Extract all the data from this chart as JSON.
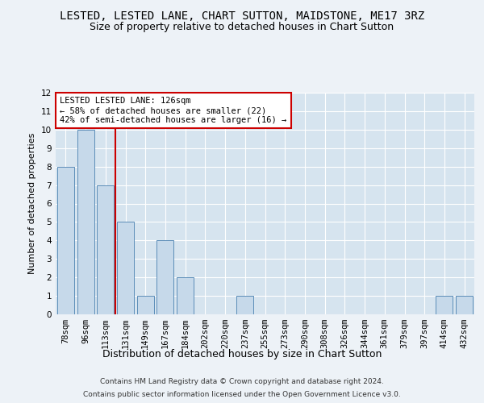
{
  "title": "LESTED, LESTED LANE, CHART SUTTON, MAIDSTONE, ME17 3RZ",
  "subtitle": "Size of property relative to detached houses in Chart Sutton",
  "xlabel": "Distribution of detached houses by size in Chart Sutton",
  "ylabel": "Number of detached properties",
  "categories": [
    "78sqm",
    "96sqm",
    "113sqm",
    "131sqm",
    "149sqm",
    "167sqm",
    "184sqm",
    "202sqm",
    "220sqm",
    "237sqm",
    "255sqm",
    "273sqm",
    "290sqm",
    "308sqm",
    "326sqm",
    "344sqm",
    "361sqm",
    "379sqm",
    "397sqm",
    "414sqm",
    "432sqm"
  ],
  "values": [
    8,
    10,
    7,
    5,
    1,
    4,
    2,
    0,
    0,
    1,
    0,
    0,
    0,
    0,
    0,
    0,
    0,
    0,
    0,
    1,
    1
  ],
  "bar_color": "#c6d9ea",
  "bar_edge_color": "#5b8db8",
  "vline_x_index": 2.5,
  "vline_color": "#cc0000",
  "ylim": [
    0,
    12
  ],
  "yticks": [
    0,
    1,
    2,
    3,
    4,
    5,
    6,
    7,
    8,
    9,
    10,
    11,
    12
  ],
  "annotation_text": "LESTED LESTED LANE: 126sqm\n← 58% of detached houses are smaller (22)\n42% of semi-detached houses are larger (16) →",
  "annotation_box_color": "#ffffff",
  "annotation_box_edgecolor": "#cc0000",
  "footer_line1": "Contains HM Land Registry data © Crown copyright and database right 2024.",
  "footer_line2": "Contains public sector information licensed under the Open Government Licence v3.0.",
  "title_fontsize": 10,
  "subtitle_fontsize": 9,
  "xlabel_fontsize": 9,
  "ylabel_fontsize": 8,
  "tick_fontsize": 7.5,
  "annotation_fontsize": 7.5,
  "footer_fontsize": 6.5,
  "background_color": "#edf2f7",
  "grid_color": "#ffffff",
  "axes_background": "#d6e4ef"
}
